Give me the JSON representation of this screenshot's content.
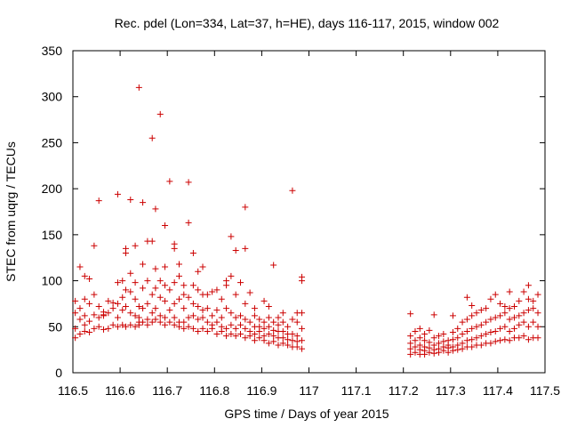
{
  "chart_data": {
    "type": "scatter",
    "title": "Rec. pdel (Lon=334, Lat=37, h=HE), days 116-117, 2015, window 002",
    "xlabel": "GPS time / Days of year 2015",
    "ylabel": "STEC from uqrg / TECUs",
    "xlim": [
      116.5,
      117.5
    ],
    "ylim": [
      0,
      350
    ],
    "xticks": [
      "116.5",
      "116.6",
      "116.7",
      "116.8",
      "116.9",
      "117",
      "117.1",
      "117.2",
      "117.3",
      "117.4",
      "117.5"
    ],
    "yticks": [
      "0",
      "50",
      "100",
      "150",
      "200",
      "250",
      "300",
      "350"
    ],
    "grid": false,
    "marker": "plus",
    "marker_color": "#cc0000",
    "points": [
      [
        116.505,
        38
      ],
      [
        116.505,
        48
      ],
      [
        116.505,
        65
      ],
      [
        116.505,
        78
      ],
      [
        116.515,
        42
      ],
      [
        116.515,
        58
      ],
      [
        116.515,
        70
      ],
      [
        116.515,
        115
      ],
      [
        116.525,
        45
      ],
      [
        116.525,
        52
      ],
      [
        116.525,
        62
      ],
      [
        116.525,
        80
      ],
      [
        116.525,
        105
      ],
      [
        116.535,
        44
      ],
      [
        116.535,
        56
      ],
      [
        116.535,
        75
      ],
      [
        116.535,
        102
      ],
      [
        116.545,
        48
      ],
      [
        116.545,
        63
      ],
      [
        116.545,
        85
      ],
      [
        116.545,
        138
      ],
      [
        116.555,
        50
      ],
      [
        116.555,
        60
      ],
      [
        116.555,
        72
      ],
      [
        116.555,
        187
      ],
      [
        116.565,
        47
      ],
      [
        116.565,
        62
      ],
      [
        116.565,
        63
      ],
      [
        116.565,
        66
      ],
      [
        116.575,
        48
      ],
      [
        116.575,
        65
      ],
      [
        116.575,
        78
      ],
      [
        116.585,
        52
      ],
      [
        116.585,
        70
      ],
      [
        116.585,
        76
      ],
      [
        116.595,
        50
      ],
      [
        116.595,
        60
      ],
      [
        116.595,
        75
      ],
      [
        116.595,
        98
      ],
      [
        116.595,
        194
      ],
      [
        116.605,
        52
      ],
      [
        116.605,
        68
      ],
      [
        116.605,
        82
      ],
      [
        116.605,
        100
      ],
      [
        116.612,
        50
      ],
      [
        116.612,
        72
      ],
      [
        116.612,
        90
      ],
      [
        116.612,
        130
      ],
      [
        116.612,
        135
      ],
      [
        116.622,
        52
      ],
      [
        116.622,
        65
      ],
      [
        116.622,
        88
      ],
      [
        116.622,
        108
      ],
      [
        116.622,
        188
      ],
      [
        116.632,
        50
      ],
      [
        116.632,
        62
      ],
      [
        116.632,
        80
      ],
      [
        116.632,
        98
      ],
      [
        116.632,
        138
      ],
      [
        116.64,
        52
      ],
      [
        116.64,
        55
      ],
      [
        116.64,
        60
      ],
      [
        116.64,
        72
      ],
      [
        116.64,
        310
      ],
      [
        116.648,
        55
      ],
      [
        116.648,
        70
      ],
      [
        116.648,
        92
      ],
      [
        116.648,
        118
      ],
      [
        116.648,
        185
      ],
      [
        116.658,
        52
      ],
      [
        116.658,
        58
      ],
      [
        116.658,
        75
      ],
      [
        116.658,
        100
      ],
      [
        116.658,
        143
      ],
      [
        116.668,
        55
      ],
      [
        116.668,
        65
      ],
      [
        116.668,
        85
      ],
      [
        116.668,
        143
      ],
      [
        116.668,
        255
      ],
      [
        116.675,
        58
      ],
      [
        116.675,
        70
      ],
      [
        116.675,
        92
      ],
      [
        116.675,
        113
      ],
      [
        116.675,
        178
      ],
      [
        116.685,
        55
      ],
      [
        116.685,
        62
      ],
      [
        116.685,
        82
      ],
      [
        116.685,
        100
      ],
      [
        116.685,
        281
      ],
      [
        116.695,
        52
      ],
      [
        116.695,
        60
      ],
      [
        116.695,
        78
      ],
      [
        116.695,
        95
      ],
      [
        116.695,
        115
      ],
      [
        116.695,
        160
      ],
      [
        116.705,
        55
      ],
      [
        116.705,
        68
      ],
      [
        116.705,
        90
      ],
      [
        116.705,
        208
      ],
      [
        116.715,
        52
      ],
      [
        116.715,
        60
      ],
      [
        116.715,
        75
      ],
      [
        116.715,
        98
      ],
      [
        116.715,
        135
      ],
      [
        116.715,
        140
      ],
      [
        116.725,
        50
      ],
      [
        116.725,
        55
      ],
      [
        116.725,
        80
      ],
      [
        116.725,
        105
      ],
      [
        116.725,
        118
      ],
      [
        116.735,
        48
      ],
      [
        116.735,
        55
      ],
      [
        116.735,
        70
      ],
      [
        116.735,
        85
      ],
      [
        116.735,
        95
      ],
      [
        116.745,
        50
      ],
      [
        116.745,
        60
      ],
      [
        116.745,
        82
      ],
      [
        116.745,
        163
      ],
      [
        116.745,
        207
      ],
      [
        116.755,
        48
      ],
      [
        116.755,
        62
      ],
      [
        116.755,
        75
      ],
      [
        116.755,
        95
      ],
      [
        116.755,
        130
      ],
      [
        116.765,
        45
      ],
      [
        116.765,
        58
      ],
      [
        116.765,
        72
      ],
      [
        116.765,
        90
      ],
      [
        116.765,
        110
      ],
      [
        116.775,
        48
      ],
      [
        116.775,
        60
      ],
      [
        116.775,
        68
      ],
      [
        116.775,
        85
      ],
      [
        116.775,
        115
      ],
      [
        116.785,
        45
      ],
      [
        116.785,
        55
      ],
      [
        116.785,
        70
      ],
      [
        116.785,
        85
      ],
      [
        116.795,
        48
      ],
      [
        116.795,
        52
      ],
      [
        116.795,
        62
      ],
      [
        116.795,
        88
      ],
      [
        116.805,
        42
      ],
      [
        116.805,
        55
      ],
      [
        116.805,
        68
      ],
      [
        116.805,
        90
      ],
      [
        116.815,
        45
      ],
      [
        116.815,
        50
      ],
      [
        116.815,
        60
      ],
      [
        116.815,
        80
      ],
      [
        116.825,
        40
      ],
      [
        116.825,
        48
      ],
      [
        116.825,
        70
      ],
      [
        116.825,
        95
      ],
      [
        116.825,
        100
      ],
      [
        116.835,
        42
      ],
      [
        116.835,
        52
      ],
      [
        116.835,
        65
      ],
      [
        116.835,
        105
      ],
      [
        116.835,
        148
      ],
      [
        116.845,
        40
      ],
      [
        116.845,
        48
      ],
      [
        116.845,
        60
      ],
      [
        116.845,
        85
      ],
      [
        116.845,
        133
      ],
      [
        116.855,
        42
      ],
      [
        116.855,
        52
      ],
      [
        116.855,
        62
      ],
      [
        116.855,
        98
      ],
      [
        116.865,
        38
      ],
      [
        116.865,
        48
      ],
      [
        116.865,
        58
      ],
      [
        116.865,
        75
      ],
      [
        116.865,
        135
      ],
      [
        116.865,
        180
      ],
      [
        116.875,
        40
      ],
      [
        116.875,
        45
      ],
      [
        116.875,
        55
      ],
      [
        116.875,
        87
      ],
      [
        116.885,
        35
      ],
      [
        116.885,
        42
      ],
      [
        116.885,
        50
      ],
      [
        116.885,
        62
      ],
      [
        116.885,
        70
      ],
      [
        116.895,
        38
      ],
      [
        116.895,
        45
      ],
      [
        116.895,
        50
      ],
      [
        116.895,
        58
      ],
      [
        116.905,
        35
      ],
      [
        116.905,
        40
      ],
      [
        116.905,
        48
      ],
      [
        116.905,
        55
      ],
      [
        116.905,
        78
      ],
      [
        116.915,
        32
      ],
      [
        116.915,
        42
      ],
      [
        116.915,
        50
      ],
      [
        116.915,
        60
      ],
      [
        116.915,
        72
      ],
      [
        116.925,
        34
      ],
      [
        116.925,
        40
      ],
      [
        116.925,
        46
      ],
      [
        116.925,
        55
      ],
      [
        116.925,
        117
      ],
      [
        116.935,
        30
      ],
      [
        116.935,
        38
      ],
      [
        116.935,
        45
      ],
      [
        116.935,
        52
      ],
      [
        116.935,
        60
      ],
      [
        116.945,
        32
      ],
      [
        116.945,
        38
      ],
      [
        116.945,
        45
      ],
      [
        116.945,
        55
      ],
      [
        116.945,
        65
      ],
      [
        116.955,
        30
      ],
      [
        116.955,
        36
      ],
      [
        116.955,
        42
      ],
      [
        116.955,
        50
      ],
      [
        116.965,
        28
      ],
      [
        116.965,
        35
      ],
      [
        116.965,
        42
      ],
      [
        116.965,
        58
      ],
      [
        116.965,
        198
      ],
      [
        116.975,
        28
      ],
      [
        116.975,
        34
      ],
      [
        116.975,
        40
      ],
      [
        116.975,
        55
      ],
      [
        116.975,
        65
      ],
      [
        116.985,
        26
      ],
      [
        116.985,
        35
      ],
      [
        116.985,
        48
      ],
      [
        116.985,
        65
      ],
      [
        116.985,
        100
      ],
      [
        116.985,
        104
      ],
      [
        117.215,
        20
      ],
      [
        117.215,
        26
      ],
      [
        117.215,
        32
      ],
      [
        117.215,
        40
      ],
      [
        117.215,
        64
      ],
      [
        117.225,
        22
      ],
      [
        117.225,
        28
      ],
      [
        117.225,
        35
      ],
      [
        117.225,
        45
      ],
      [
        117.235,
        20
      ],
      [
        117.235,
        25
      ],
      [
        117.235,
        30
      ],
      [
        117.235,
        38
      ],
      [
        117.235,
        48
      ],
      [
        117.245,
        20
      ],
      [
        117.245,
        24
      ],
      [
        117.245,
        28
      ],
      [
        117.245,
        35
      ],
      [
        117.245,
        42
      ],
      [
        117.255,
        22
      ],
      [
        117.255,
        27
      ],
      [
        117.255,
        33
      ],
      [
        117.255,
        46
      ],
      [
        117.265,
        21
      ],
      [
        117.265,
        25
      ],
      [
        117.265,
        30
      ],
      [
        117.265,
        38
      ],
      [
        117.265,
        63
      ],
      [
        117.275,
        22
      ],
      [
        117.275,
        26
      ],
      [
        117.275,
        32
      ],
      [
        117.275,
        40
      ],
      [
        117.285,
        24
      ],
      [
        117.285,
        28
      ],
      [
        117.285,
        34
      ],
      [
        117.285,
        42
      ],
      [
        117.295,
        22
      ],
      [
        117.295,
        27
      ],
      [
        117.295,
        30
      ],
      [
        117.295,
        35
      ],
      [
        117.305,
        24
      ],
      [
        117.305,
        28
      ],
      [
        117.305,
        36
      ],
      [
        117.305,
        44
      ],
      [
        117.305,
        62
      ],
      [
        117.315,
        25
      ],
      [
        117.315,
        30
      ],
      [
        117.315,
        38
      ],
      [
        117.315,
        48
      ],
      [
        117.325,
        26
      ],
      [
        117.325,
        32
      ],
      [
        117.325,
        42
      ],
      [
        117.325,
        55
      ],
      [
        117.335,
        28
      ],
      [
        117.335,
        35
      ],
      [
        117.335,
        45
      ],
      [
        117.335,
        58
      ],
      [
        117.335,
        82
      ],
      [
        117.345,
        28
      ],
      [
        117.345,
        36
      ],
      [
        117.345,
        48
      ],
      [
        117.345,
        62
      ],
      [
        117.345,
        73
      ],
      [
        117.355,
        30
      ],
      [
        117.355,
        38
      ],
      [
        117.355,
        50
      ],
      [
        117.355,
        65
      ],
      [
        117.365,
        30
      ],
      [
        117.365,
        40
      ],
      [
        117.365,
        52
      ],
      [
        117.365,
        68
      ],
      [
        117.375,
        32
      ],
      [
        117.375,
        42
      ],
      [
        117.375,
        55
      ],
      [
        117.375,
        70
      ],
      [
        117.385,
        32
      ],
      [
        117.385,
        44
      ],
      [
        117.385,
        58
      ],
      [
        117.385,
        80
      ],
      [
        117.395,
        34
      ],
      [
        117.395,
        45
      ],
      [
        117.395,
        60
      ],
      [
        117.395,
        85
      ],
      [
        117.405,
        35
      ],
      [
        117.405,
        48
      ],
      [
        117.405,
        62
      ],
      [
        117.405,
        75
      ],
      [
        117.415,
        36
      ],
      [
        117.415,
        50
      ],
      [
        117.415,
        65
      ],
      [
        117.415,
        72
      ],
      [
        117.425,
        35
      ],
      [
        117.425,
        45
      ],
      [
        117.425,
        58
      ],
      [
        117.425,
        70
      ],
      [
        117.425,
        88
      ],
      [
        117.435,
        38
      ],
      [
        117.435,
        48
      ],
      [
        117.435,
        60
      ],
      [
        117.435,
        72
      ],
      [
        117.445,
        38
      ],
      [
        117.445,
        52
      ],
      [
        117.445,
        62
      ],
      [
        117.445,
        78
      ],
      [
        117.455,
        40
      ],
      [
        117.455,
        55
      ],
      [
        117.455,
        65
      ],
      [
        117.455,
        88
      ],
      [
        117.465,
        36
      ],
      [
        117.465,
        50
      ],
      [
        117.465,
        68
      ],
      [
        117.465,
        80
      ],
      [
        117.465,
        95
      ],
      [
        117.475,
        38
      ],
      [
        117.475,
        55
      ],
      [
        117.475,
        70
      ],
      [
        117.475,
        78
      ],
      [
        117.485,
        38
      ],
      [
        117.485,
        50
      ],
      [
        117.485,
        65
      ],
      [
        117.485,
        85
      ]
    ]
  }
}
